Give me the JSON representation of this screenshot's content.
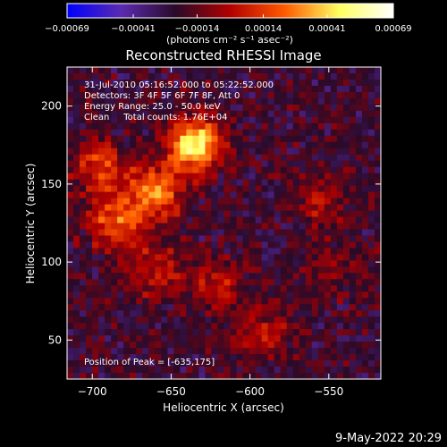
{
  "chart_data": {
    "type": "heatmap",
    "title": "Reconstructed RHESSI Image",
    "xlabel": "Heliocentric X (arcsec)",
    "ylabel": "Heliocentric Y (arcsec)",
    "xlim": [
      -716,
      -517
    ],
    "ylim": [
      25,
      225
    ],
    "x_ticks": [
      -700,
      -650,
      -600,
      -550
    ],
    "x_tick_labels": [
      "−700",
      "−650",
      "−600",
      "−550"
    ],
    "y_ticks": [
      50,
      100,
      150,
      200
    ],
    "y_tick_labels": [
      "50",
      "100",
      "150",
      "200"
    ],
    "colorbar": {
      "unit_label": "(photons cm⁻² s⁻¹ asec⁻²)",
      "ticks": [
        -0.00069,
        -0.00041,
        -0.00014,
        0.00014,
        0.00041,
        0.00069
      ],
      "tick_labels": [
        "−0.00069",
        "−0.00041",
        "−0.00014",
        "0.00014",
        "0.00041",
        "0.00069"
      ],
      "range": [
        -0.00069,
        0.00069
      ],
      "colors": [
        "#0000ff",
        "#5a2bb0",
        "#2a0a28",
        "#b20000",
        "#ff5a00",
        "#ffff60",
        "#ffffff"
      ]
    },
    "annotations": [
      "31-Jul-2010 05:16:52.000 to 05:22:52.000",
      "Detectors: 3F 4F 5F 6F 7F 8F, Att 0",
      "Energy Range: 25.0 - 50.0 keV",
      "Clean     Total counts: 1.76E+04"
    ],
    "peak_label": "Position of Peak = [-635,175]",
    "peak": [
      -635,
      175
    ],
    "sources": [
      {
        "x": -635,
        "y": 175,
        "amp": 0.00069
      },
      {
        "x": -660,
        "y": 145,
        "amp": 0.0005
      },
      {
        "x": -685,
        "y": 125,
        "amp": 0.00042
      },
      {
        "x": -695,
        "y": 160,
        "amp": 0.00035
      },
      {
        "x": -660,
        "y": 95,
        "amp": 0.00028
      },
      {
        "x": -620,
        "y": 85,
        "amp": 0.00025
      },
      {
        "x": -590,
        "y": 55,
        "amp": 0.00022
      },
      {
        "x": -555,
        "y": 140,
        "amp": 0.0002
      },
      {
        "x": -545,
        "y": 95,
        "amp": 0.00015
      }
    ],
    "background": -0.00022
  },
  "footer": {
    "date": "9-May-2022 20:29"
  }
}
